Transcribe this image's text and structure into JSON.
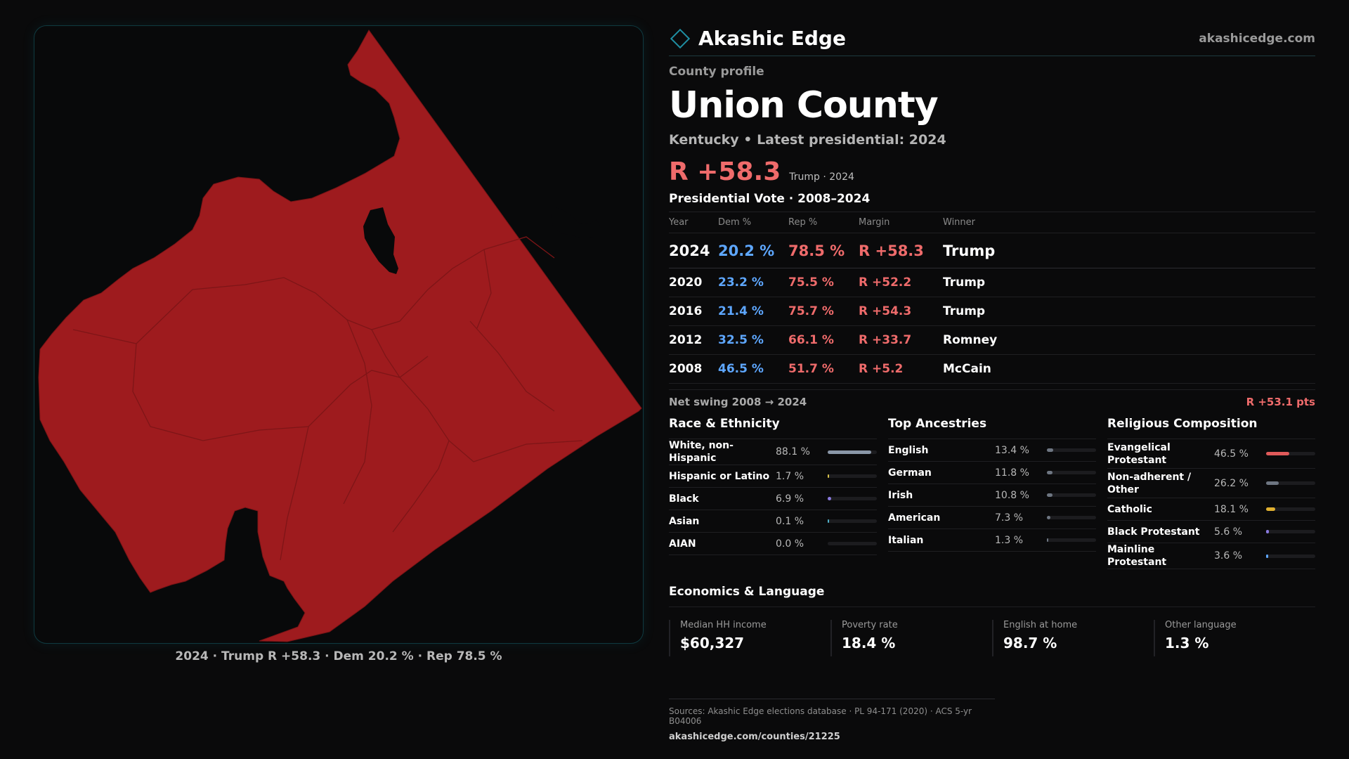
{
  "brand": {
    "name": "Akashic Edge",
    "url": "akashicedge.com",
    "logo_icon": "diamond-outline-icon",
    "accent": "#1f8fa3"
  },
  "profile": {
    "label": "County profile",
    "county": "Union County",
    "subtitle": "Kentucky • Latest presidential: 2024",
    "margin": "R +58.3",
    "margin_note": "Trump · 2024"
  },
  "map": {
    "fill_color": "#9e1b1e",
    "caption": "2024 · Trump R +58.3 · Dem 20.2 % · Rep 78.5 %"
  },
  "presidential": {
    "title": "Presidential Vote · 2008–2024",
    "headers": {
      "year": "Year",
      "dem": "Dem %",
      "rep": "Rep %",
      "margin": "Margin",
      "winner": "Winner"
    },
    "rows": [
      {
        "year": "2024",
        "dem": "20.2 %",
        "rep": "78.5 %",
        "margin": "R +58.3",
        "winner": "Trump"
      },
      {
        "year": "2020",
        "dem": "23.2 %",
        "rep": "75.5 %",
        "margin": "R +52.2",
        "winner": "Trump"
      },
      {
        "year": "2016",
        "dem": "21.4 %",
        "rep": "75.7 %",
        "margin": "R +54.3",
        "winner": "Trump"
      },
      {
        "year": "2012",
        "dem": "32.5 %",
        "rep": "66.1 %",
        "margin": "R +33.7",
        "winner": "Romney"
      },
      {
        "year": "2008",
        "dem": "46.5 %",
        "rep": "51.7 %",
        "margin": "R +5.2",
        "winner": "McCain"
      }
    ],
    "swing_label": "Net swing 2008 → 2024",
    "swing_value": "R +53.1 pts"
  },
  "demographics": [
    {
      "title": "Race & Ethnicity",
      "rows": [
        {
          "name": "White, non-Hispanic",
          "value": "88.1 %",
          "fraction": 0.881,
          "color": "#8a97a8"
        },
        {
          "name": "Hispanic or Latino",
          "value": "1.7 %",
          "fraction": 0.017,
          "color": "#d7c24a"
        },
        {
          "name": "Black",
          "value": "6.9 %",
          "fraction": 0.069,
          "color": "#8a7ae0"
        },
        {
          "name": "Asian",
          "value": "0.1 %",
          "fraction": 0.001,
          "color": "#4fb0c8"
        },
        {
          "name": "AIAN",
          "value": "0.0 %",
          "fraction": 0.0,
          "color": "#8a97a8"
        }
      ]
    },
    {
      "title": "Top Ancestries",
      "rows": [
        {
          "name": "English",
          "value": "13.4 %",
          "fraction": 0.134,
          "color": "#6e7682"
        },
        {
          "name": "German",
          "value": "11.8 %",
          "fraction": 0.118,
          "color": "#6e7682"
        },
        {
          "name": "Irish",
          "value": "10.8 %",
          "fraction": 0.108,
          "color": "#6e7682"
        },
        {
          "name": "American",
          "value": "7.3 %",
          "fraction": 0.073,
          "color": "#6e7682"
        },
        {
          "name": "Italian",
          "value": "1.3 %",
          "fraction": 0.013,
          "color": "#6e7682"
        }
      ]
    },
    {
      "title": "Religious Composition",
      "rows": [
        {
          "name": "Evangelical Protestant",
          "value": "46.5 %",
          "fraction": 0.465,
          "color": "#e05a5a"
        },
        {
          "name": "Non-adherent / Other",
          "value": "26.2 %",
          "fraction": 0.262,
          "color": "#6e7682"
        },
        {
          "name": "Catholic",
          "value": "18.1 %",
          "fraction": 0.181,
          "color": "#e0b030"
        },
        {
          "name": "Black Protestant",
          "value": "5.6 %",
          "fraction": 0.056,
          "color": "#8a7ae0"
        },
        {
          "name": "Mainline Protestant",
          "value": "3.6 %",
          "fraction": 0.036,
          "color": "#5ea7ff"
        }
      ]
    }
  ],
  "economics": {
    "title": "Economics & Language",
    "cards": [
      {
        "label": "Median HH income",
        "value": "$60,327"
      },
      {
        "label": "Poverty rate",
        "value": "18.4 %"
      },
      {
        "label": "English at home",
        "value": "98.7 %"
      },
      {
        "label": "Other language",
        "value": "1.3 %"
      }
    ]
  },
  "sources": {
    "text": "Sources: Akashic Edge elections database · PL 94-171 (2020) · ACS 5-yr B04006",
    "url": "akashicedge.com/counties/21225"
  }
}
